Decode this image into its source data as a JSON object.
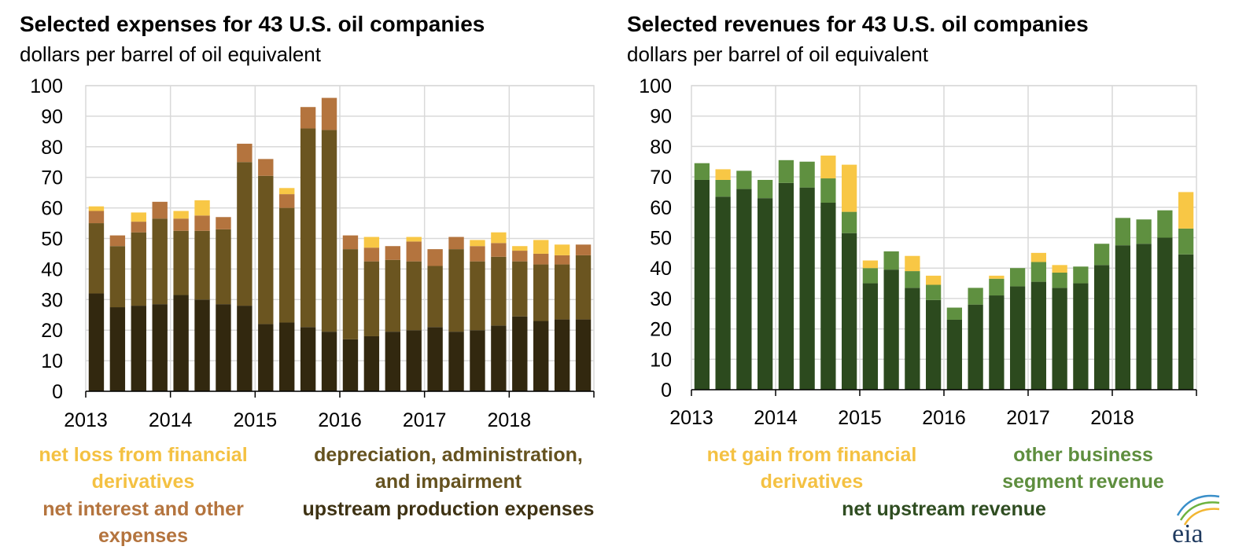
{
  "chart_data": [
    {
      "type": "bar",
      "stacked": true,
      "title": "Selected expenses for 43 U.S. oil companies",
      "subtitle": "dollars per barrel of oil equivalent",
      "ylim": [
        0,
        100
      ],
      "yticks": [
        "0",
        "10",
        "20",
        "30",
        "40",
        "50",
        "60",
        "70",
        "80",
        "90",
        "100"
      ],
      "xticks": [
        "2013",
        "2014",
        "2015",
        "2016",
        "2017",
        "2018"
      ],
      "categories": [
        "2013Q1",
        "2013Q2",
        "2013Q3",
        "2013Q4",
        "2014Q1",
        "2014Q2",
        "2014Q3",
        "2014Q4",
        "2015Q1",
        "2015Q2",
        "2015Q3",
        "2015Q4",
        "2016Q1",
        "2016Q2",
        "2016Q3",
        "2016Q4",
        "2017Q1",
        "2017Q2",
        "2017Q3",
        "2017Q4",
        "2018Q1",
        "2018Q2",
        "2018Q3",
        "2018Q4"
      ],
      "series": [
        {
          "name": "upstream production expenses",
          "color": "#32280f",
          "values": [
            32,
            27.5,
            28,
            28.5,
            31.5,
            30,
            28.5,
            28,
            22,
            22.5,
            21,
            19.5,
            17,
            18,
            19.5,
            20,
            21,
            19.5,
            20,
            21.5,
            24.5,
            23,
            23.5,
            23.5
          ]
        },
        {
          "name": "depreciation, administration, and impairment",
          "color": "#6b5520",
          "values": [
            23,
            20,
            24,
            28,
            21,
            22.5,
            24.5,
            47,
            48.5,
            37.5,
            65,
            66,
            29.5,
            24.5,
            23.5,
            22.5,
            20,
            27,
            22.5,
            22.5,
            18,
            18.5,
            18,
            21
          ]
        },
        {
          "name": "net interest and other expenses",
          "color": "#b4743e",
          "values": [
            4,
            3.5,
            3.5,
            5.5,
            4,
            5,
            4,
            6,
            5.5,
            4.5,
            7,
            10.5,
            4.5,
            4.5,
            4.5,
            6.5,
            5.5,
            4,
            5,
            4.5,
            3.5,
            3.5,
            3,
            3.5
          ]
        },
        {
          "name": "net loss from financial derivatives",
          "color": "#f8c745",
          "values": [
            1.5,
            0,
            3,
            0,
            2.5,
            5,
            0,
            0,
            0,
            2,
            0,
            0,
            0,
            3.5,
            0,
            1.5,
            0,
            0,
            2,
            3.5,
            1.5,
            4.5,
            3.5,
            0
          ]
        }
      ],
      "legend": [
        {
          "lines": [
            "net loss from financial",
            "derivatives"
          ],
          "color": "#f4c142"
        },
        {
          "lines": [
            "depreciation, administration,",
            "and impairment"
          ],
          "color": "#65521f"
        },
        {
          "lines": [
            "net interest and other",
            "expenses"
          ],
          "color": "#b4743e"
        },
        {
          "lines": [
            "upstream production expenses"
          ],
          "color": "#3e3213"
        }
      ]
    },
    {
      "type": "bar",
      "stacked": true,
      "title": "Selected revenues for 43 U.S. oil companies",
      "subtitle": "dollars per barrel of oil equivalent",
      "ylim": [
        0,
        100
      ],
      "yticks": [
        "0",
        "10",
        "20",
        "30",
        "40",
        "50",
        "60",
        "70",
        "80",
        "90",
        "100"
      ],
      "xticks": [
        "2013",
        "2014",
        "2015",
        "2016",
        "2017",
        "2018"
      ],
      "categories": [
        "2013Q1",
        "2013Q2",
        "2013Q3",
        "2013Q4",
        "2014Q1",
        "2014Q2",
        "2014Q3",
        "2014Q4",
        "2015Q1",
        "2015Q2",
        "2015Q3",
        "2015Q4",
        "2016Q1",
        "2016Q2",
        "2016Q3",
        "2016Q4",
        "2017Q1",
        "2017Q2",
        "2017Q3",
        "2017Q4",
        "2018Q1",
        "2018Q2",
        "2018Q3",
        "2018Q4"
      ],
      "series": [
        {
          "name": "net upstream revenue",
          "color": "#2c4a1e",
          "values": [
            69,
            63.5,
            66,
            63,
            68,
            66.5,
            61.5,
            51.5,
            35,
            39.5,
            33.5,
            29.5,
            23,
            28,
            31,
            34,
            35.5,
            33.5,
            35,
            41,
            47.5,
            48,
            50,
            44.5
          ]
        },
        {
          "name": "other business segment revenue",
          "color": "#5f9040",
          "values": [
            5.5,
            5.5,
            6,
            6,
            7.5,
            8.5,
            8,
            7,
            5,
            6,
            5.5,
            5,
            4,
            5.5,
            5.5,
            6,
            6.5,
            5,
            5.5,
            7,
            9,
            8,
            9,
            8.5
          ]
        },
        {
          "name": "net gain from financial derivatives",
          "color": "#f8c745",
          "values": [
            0,
            3.5,
            0,
            0,
            0,
            0,
            7.5,
            15.5,
            2.5,
            0,
            5,
            3,
            0,
            0,
            1,
            0,
            3,
            2.5,
            0,
            0,
            0,
            0,
            0,
            12
          ]
        }
      ],
      "legend": [
        {
          "lines": [
            "net gain from financial",
            "derivatives"
          ],
          "color": "#f4c142"
        },
        {
          "lines": [
            "other business",
            "segment revenue"
          ],
          "color": "#5e8e3e"
        },
        {
          "lines": [
            "net upstream revenue"
          ],
          "color": "#2f4d21"
        }
      ]
    }
  ],
  "logo": {
    "text": "eia"
  }
}
